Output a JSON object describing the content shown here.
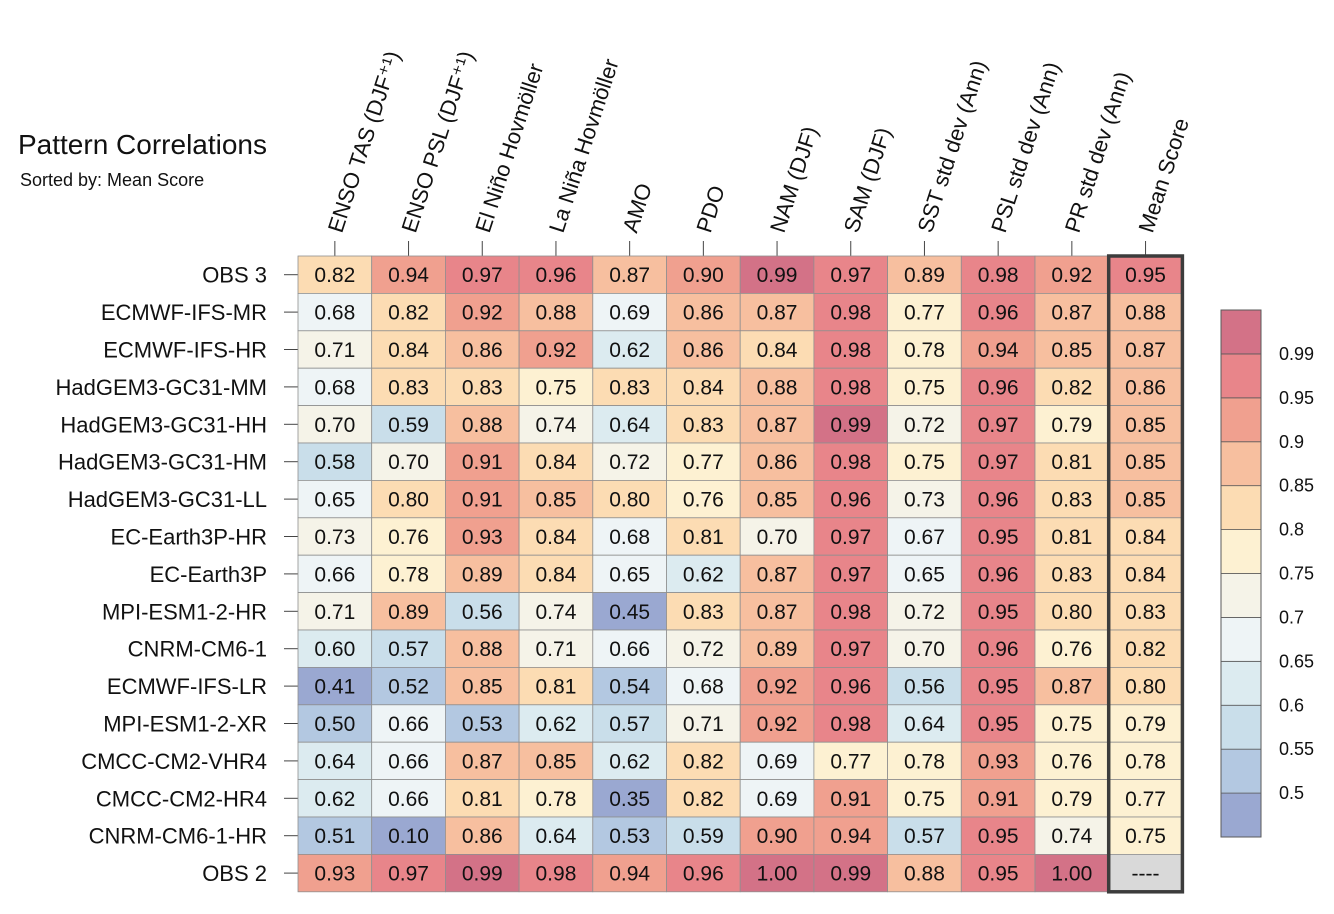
{
  "title": "Pattern Correlations",
  "subtitle": "Sorted by: Mean Score",
  "chart_data": {
    "type": "heatmap",
    "title": "Pattern Correlations",
    "subtitle": "Sorted by: Mean Score",
    "columns": [
      "ENSO TAS (DJF⁺¹)",
      "ENSO PSL (DJF⁺¹)",
      "El Niño Hovmöller",
      "La Niña Hovmöller",
      "AMO",
      "PDO",
      "NAM (DJF)",
      "SAM (DJF)",
      "SST std dev (Ann)",
      "PSL std dev (Ann)",
      "PR std dev (Ann)",
      "Mean Score"
    ],
    "rows": [
      "OBS 3",
      "ECMWF-IFS-MR",
      "ECMWF-IFS-HR",
      "HadGEM3-GC31-MM",
      "HadGEM3-GC31-HH",
      "HadGEM3-GC31-HM",
      "HadGEM3-GC31-LL",
      "EC-Earth3P-HR",
      "EC-Earth3P",
      "MPI-ESM1-2-HR",
      "CNRM-CM6-1",
      "ECMWF-IFS-LR",
      "MPI-ESM1-2-XR",
      "CMCC-CM2-VHR4",
      "CMCC-CM2-HR4",
      "CNRM-CM6-1-HR",
      "OBS 2"
    ],
    "values": [
      [
        "0.82",
        "0.94",
        "0.97",
        "0.96",
        "0.87",
        "0.90",
        "0.99",
        "0.97",
        "0.89",
        "0.98",
        "0.92",
        "0.95"
      ],
      [
        "0.68",
        "0.82",
        "0.92",
        "0.88",
        "0.69",
        "0.86",
        "0.87",
        "0.98",
        "0.77",
        "0.96",
        "0.87",
        "0.88"
      ],
      [
        "0.71",
        "0.84",
        "0.86",
        "0.92",
        "0.62",
        "0.86",
        "0.84",
        "0.98",
        "0.78",
        "0.94",
        "0.85",
        "0.87"
      ],
      [
        "0.68",
        "0.83",
        "0.83",
        "0.75",
        "0.83",
        "0.84",
        "0.88",
        "0.98",
        "0.75",
        "0.96",
        "0.82",
        "0.86"
      ],
      [
        "0.70",
        "0.59",
        "0.88",
        "0.74",
        "0.64",
        "0.83",
        "0.87",
        "0.99",
        "0.72",
        "0.97",
        "0.79",
        "0.85"
      ],
      [
        "0.58",
        "0.70",
        "0.91",
        "0.84",
        "0.72",
        "0.77",
        "0.86",
        "0.98",
        "0.75",
        "0.97",
        "0.81",
        "0.85"
      ],
      [
        "0.65",
        "0.80",
        "0.91",
        "0.85",
        "0.80",
        "0.76",
        "0.85",
        "0.96",
        "0.73",
        "0.96",
        "0.83",
        "0.85"
      ],
      [
        "0.73",
        "0.76",
        "0.93",
        "0.84",
        "0.68",
        "0.81",
        "0.70",
        "0.97",
        "0.67",
        "0.95",
        "0.81",
        "0.84"
      ],
      [
        "0.66",
        "0.78",
        "0.89",
        "0.84",
        "0.65",
        "0.62",
        "0.87",
        "0.97",
        "0.65",
        "0.96",
        "0.83",
        "0.84"
      ],
      [
        "0.71",
        "0.89",
        "0.56",
        "0.74",
        "0.45",
        "0.83",
        "0.87",
        "0.98",
        "0.72",
        "0.95",
        "0.80",
        "0.83"
      ],
      [
        "0.60",
        "0.57",
        "0.88",
        "0.71",
        "0.66",
        "0.72",
        "0.89",
        "0.97",
        "0.70",
        "0.96",
        "0.76",
        "0.82"
      ],
      [
        "0.41",
        "0.52",
        "0.85",
        "0.81",
        "0.54",
        "0.68",
        "0.92",
        "0.96",
        "0.56",
        "0.95",
        "0.87",
        "0.80"
      ],
      [
        "0.50",
        "0.66",
        "0.53",
        "0.62",
        "0.57",
        "0.71",
        "0.92",
        "0.98",
        "0.64",
        "0.95",
        "0.75",
        "0.79"
      ],
      [
        "0.64",
        "0.66",
        "0.87",
        "0.85",
        "0.62",
        "0.82",
        "0.69",
        "0.77",
        "0.78",
        "0.93",
        "0.76",
        "0.78"
      ],
      [
        "0.62",
        "0.66",
        "0.81",
        "0.78",
        "0.35",
        "0.82",
        "0.69",
        "0.91",
        "0.75",
        "0.91",
        "0.79",
        "0.77"
      ],
      [
        "0.51",
        "0.10",
        "0.86",
        "0.64",
        "0.53",
        "0.59",
        "0.90",
        "0.94",
        "0.57",
        "0.95",
        "0.74",
        "0.75"
      ],
      [
        "0.93",
        "0.97",
        "0.99",
        "0.98",
        "0.94",
        "0.96",
        "1.00",
        "0.99",
        "0.88",
        "0.95",
        "1.00",
        "----"
      ]
    ],
    "colorbar": {
      "ticks": [
        "0.99",
        "0.95",
        "0.9",
        "0.85",
        "0.8",
        "0.75",
        "0.7",
        "0.65",
        "0.6",
        "0.55",
        "0.5"
      ],
      "tick_values": [
        0.99,
        0.95,
        0.9,
        0.85,
        0.8,
        0.75,
        0.7,
        0.65,
        0.6,
        0.55,
        0.5
      ],
      "bin_edges": [
        0.5,
        0.55,
        0.6,
        0.65,
        0.7,
        0.75,
        0.8,
        0.85,
        0.9,
        0.95,
        0.99
      ],
      "colors": [
        "#9aa8d1",
        "#b3c8e1",
        "#c9deea",
        "#dcebf0",
        "#eef4f6",
        "#f5f3e8",
        "#fdf1d2",
        "#fcdcb3",
        "#f7bf9f",
        "#f0a08f",
        "#e8858a",
        "#d37287"
      ]
    },
    "missing_color": "#d9d9d9",
    "highlight_column": "Mean Score"
  }
}
